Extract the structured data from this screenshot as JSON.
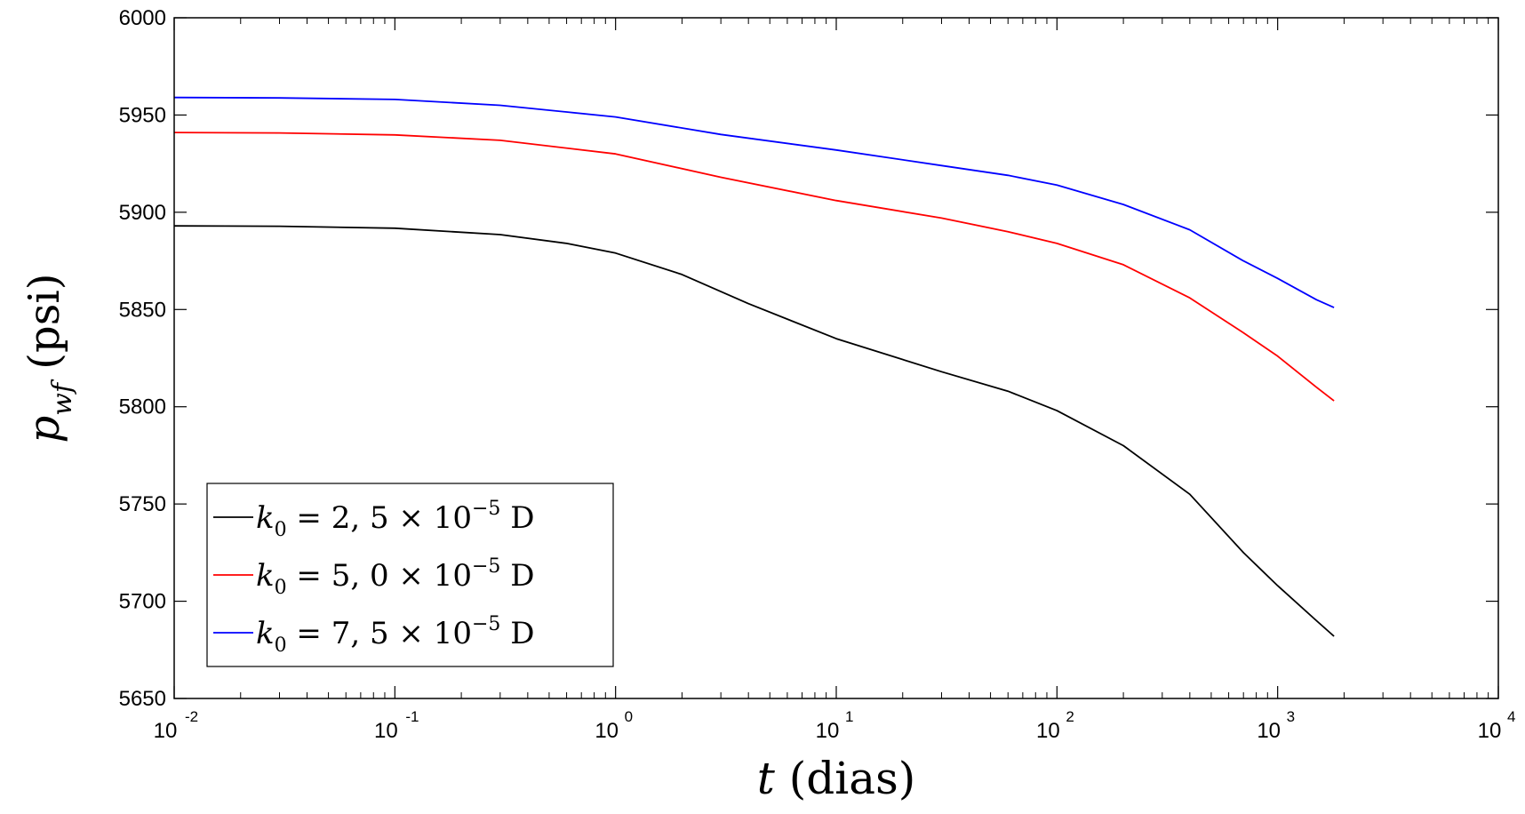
{
  "chart_data": {
    "type": "line",
    "x_scale": "log",
    "xlim": [
      0.01,
      10000
    ],
    "ylim": [
      5650,
      6000
    ],
    "x_ticks": [
      {
        "base": "10",
        "exp": "-2"
      },
      {
        "base": "10",
        "exp": "-1"
      },
      {
        "base": "10",
        "exp": "0"
      },
      {
        "base": "10",
        "exp": "1"
      },
      {
        "base": "10",
        "exp": "2"
      },
      {
        "base": "10",
        "exp": "3"
      },
      {
        "base": "10",
        "exp": "4"
      }
    ],
    "y_ticks": [
      "5650",
      "5700",
      "5750",
      "5800",
      "5850",
      "5900",
      "5950",
      "6000"
    ],
    "xlabel": {
      "var": "t",
      "unit": "(dias)"
    },
    "ylabel": {
      "var": "p",
      "sub": "wf",
      "unit": "(psi)"
    },
    "legend_position": "bottom-left",
    "series": [
      {
        "name": "k0 = 2,5 × 10^-5 D",
        "legend": {
          "var": "k",
          "sub": "0",
          "eq": " = 2, 5 × 10",
          "exp": "−5",
          "unit": " D"
        },
        "color": "#000000",
        "points": [
          [
            0.01,
            5893
          ],
          [
            0.03,
            5892.8
          ],
          [
            0.1,
            5891.8
          ],
          [
            0.3,
            5888.5
          ],
          [
            0.6,
            5884
          ],
          [
            1,
            5879
          ],
          [
            2,
            5868
          ],
          [
            4,
            5853
          ],
          [
            10,
            5835
          ],
          [
            30,
            5818
          ],
          [
            60,
            5808
          ],
          [
            100,
            5798
          ],
          [
            200,
            5780
          ],
          [
            400,
            5755
          ],
          [
            700,
            5725
          ],
          [
            1000,
            5708
          ],
          [
            1500,
            5690
          ],
          [
            1800,
            5682
          ]
        ]
      },
      {
        "name": "k0 = 5,0 × 10^-5 D",
        "legend": {
          "var": "k",
          "sub": "0",
          "eq": " = 5, 0 × 10",
          "exp": "−5",
          "unit": " D"
        },
        "color": "#ff0000",
        "points": [
          [
            0.01,
            5941
          ],
          [
            0.03,
            5940.8
          ],
          [
            0.1,
            5939.8
          ],
          [
            0.3,
            5937
          ],
          [
            1,
            5930
          ],
          [
            3,
            5918
          ],
          [
            10,
            5906
          ],
          [
            30,
            5897
          ],
          [
            60,
            5890
          ],
          [
            100,
            5884
          ],
          [
            200,
            5873
          ],
          [
            400,
            5856
          ],
          [
            700,
            5838
          ],
          [
            1000,
            5826
          ],
          [
            1500,
            5810
          ],
          [
            1800,
            5803
          ]
        ]
      },
      {
        "name": "k0 = 7,5 × 10^-5 D",
        "legend": {
          "var": "k",
          "sub": "0",
          "eq": " = 7, 5 × 10",
          "exp": "−5",
          "unit": " D"
        },
        "color": "#0000ff",
        "points": [
          [
            0.01,
            5959
          ],
          [
            0.03,
            5958.8
          ],
          [
            0.1,
            5958
          ],
          [
            0.3,
            5955
          ],
          [
            1,
            5949
          ],
          [
            3,
            5940
          ],
          [
            10,
            5932
          ],
          [
            30,
            5924
          ],
          [
            60,
            5919
          ],
          [
            100,
            5914
          ],
          [
            200,
            5904
          ],
          [
            400,
            5891
          ],
          [
            700,
            5875
          ],
          [
            1000,
            5866
          ],
          [
            1500,
            5855
          ],
          [
            1800,
            5851
          ]
        ]
      }
    ]
  }
}
